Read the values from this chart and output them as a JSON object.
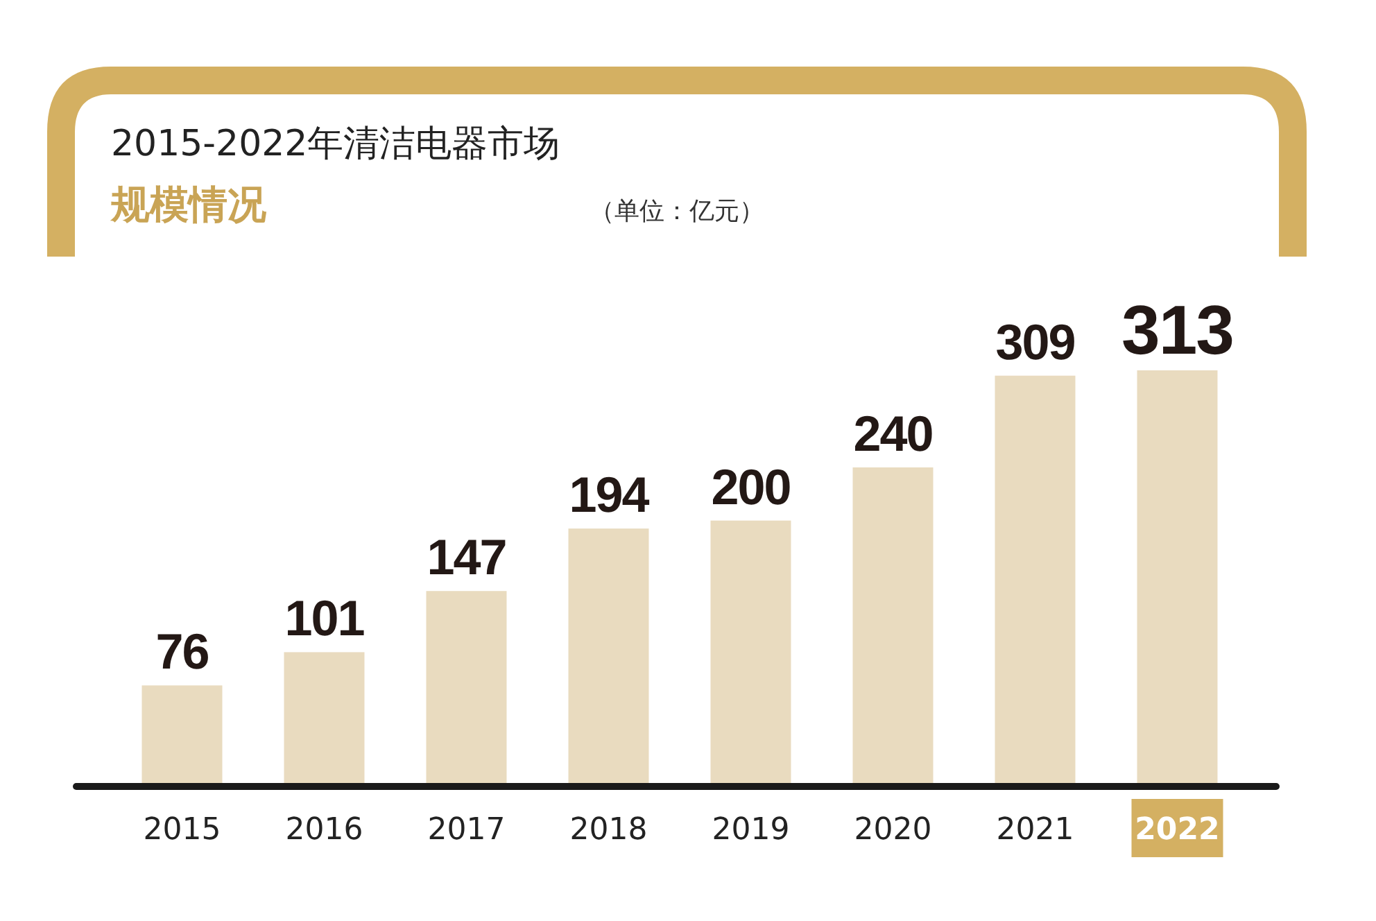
{
  "chart_data": {
    "type": "bar",
    "title": "2015-2022年清洁电器市场",
    "subtitle": "规模情况",
    "annotations": [
      "（单位：亿元）"
    ],
    "categories": [
      "2015",
      "2016",
      "2017",
      "2018",
      "2019",
      "2020",
      "2021",
      "2022"
    ],
    "values": [
      76,
      101,
      147,
      194,
      200,
      240,
      309,
      313
    ],
    "color": "#e9dbbf",
    "data_labels": true
  }
}
